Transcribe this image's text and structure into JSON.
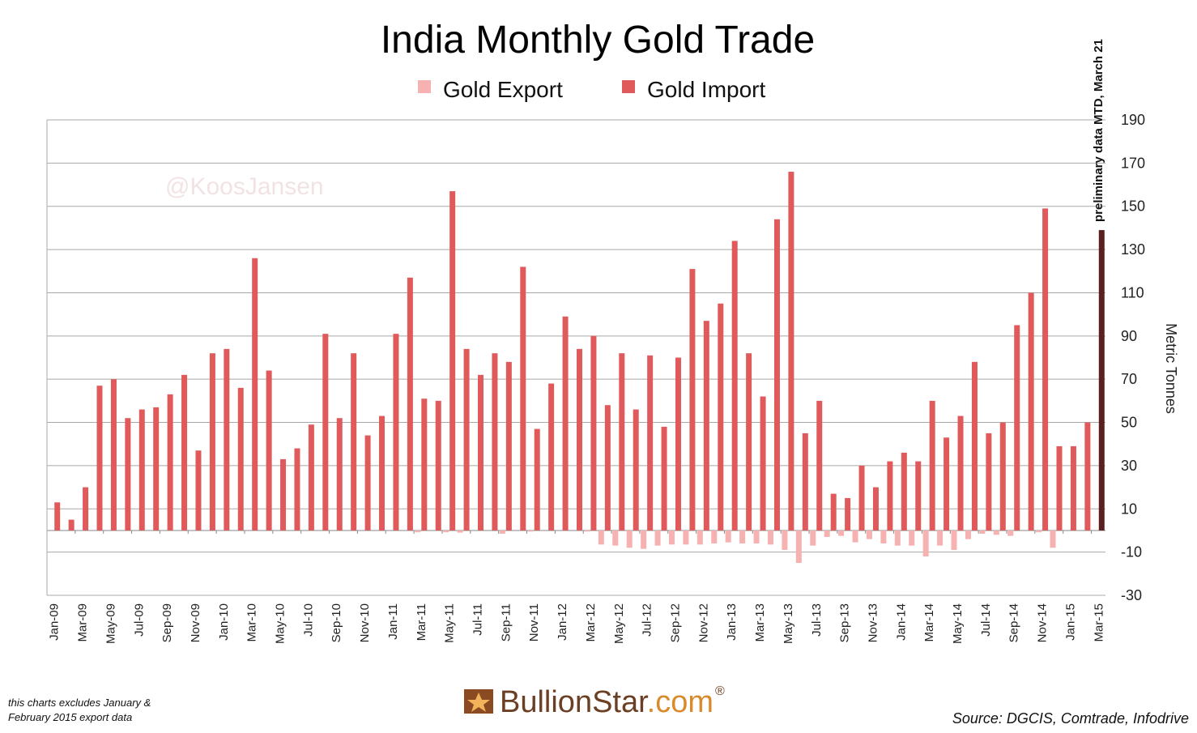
{
  "watermark": "@KoosJansen",
  "note_line1": "this charts excludes January &",
  "note_line2": "February 2015 export data",
  "brand": {
    "name": "BullionStar",
    "suffix": ".com",
    "reg": "®",
    "icon": "bullionstar-star-logo-icon"
  },
  "source": "Source: DGCIS, Comtrade, Infodrive",
  "colors": {
    "import": "#e05a5c",
    "export": "#f6b1b1",
    "preliminary": "#5a1f1f",
    "grid": "#a8a8a8"
  },
  "chart_data": {
    "type": "bar",
    "title": "India Monthly Gold Trade",
    "ylabel": "Metric Tonnes",
    "xlabel": "",
    "ylim": [
      -30,
      190
    ],
    "yticks": [
      190,
      170,
      150,
      130,
      110,
      90,
      70,
      50,
      30,
      10,
      -10,
      -30
    ],
    "y_axis_position": "right",
    "legend_position": "top-center",
    "grid": true,
    "annotation": "preliminary data MTD, March 21",
    "categories": [
      "Jan-09",
      "Feb-09",
      "Mar-09",
      "Apr-09",
      "May-09",
      "Jun-09",
      "Jul-09",
      "Aug-09",
      "Sep-09",
      "Oct-09",
      "Nov-09",
      "Dec-09",
      "Jan-10",
      "Feb-10",
      "Mar-10",
      "Apr-10",
      "May-10",
      "Jun-10",
      "Jul-10",
      "Aug-10",
      "Sep-10",
      "Oct-10",
      "Nov-10",
      "Dec-10",
      "Jan-11",
      "Feb-11",
      "Mar-11",
      "Apr-11",
      "May-11",
      "Jun-11",
      "Jul-11",
      "Aug-11",
      "Sep-11",
      "Oct-11",
      "Nov-11",
      "Dec-11",
      "Jan-12",
      "Feb-12",
      "Mar-12",
      "Apr-12",
      "May-12",
      "Jun-12",
      "Jul-12",
      "Aug-12",
      "Sep-12",
      "Oct-12",
      "Nov-12",
      "Dec-12",
      "Jan-13",
      "Feb-13",
      "Mar-13",
      "Apr-13",
      "May-13",
      "Jun-13",
      "Jul-13",
      "Aug-13",
      "Sep-13",
      "Oct-13",
      "Nov-13",
      "Dec-13",
      "Jan-14",
      "Feb-14",
      "Mar-14",
      "Apr-14",
      "May-14",
      "Jun-14",
      "Jul-14",
      "Aug-14",
      "Sep-14",
      "Oct-14",
      "Nov-14",
      "Dec-14",
      "Jan-15",
      "Feb-15",
      "Mar-15"
    ],
    "xtick_labels": [
      "Jan-09",
      "Mar-09",
      "May-09",
      "Jul-09",
      "Sep-09",
      "Nov-09",
      "Jan-10",
      "Mar-10",
      "May-10",
      "Jul-10",
      "Sep-10",
      "Nov-10",
      "Jan-11",
      "Mar-11",
      "May-11",
      "Jul-11",
      "Sep-11",
      "Nov-11",
      "Jan-12",
      "Mar-12",
      "May-12",
      "Jul-12",
      "Sep-12",
      "Nov-12",
      "Jan-13",
      "Mar-13",
      "May-13",
      "Jul-13",
      "Sep-13",
      "Nov-13",
      "Jan-14",
      "Mar-14",
      "May-14",
      "Jul-14",
      "Sep-14",
      "Nov-14",
      "Jan-15",
      "Mar-15"
    ],
    "series": [
      {
        "name": "Gold Export",
        "values": [
          0,
          0,
          0,
          0,
          0,
          0,
          0,
          0,
          0,
          0,
          0,
          0,
          0,
          0,
          0,
          0,
          0,
          0,
          0,
          0,
          0,
          0,
          0,
          0,
          0,
          0,
          -0.8,
          0,
          -0.8,
          -1,
          0,
          0,
          -1.5,
          0,
          -0.5,
          0,
          0,
          0,
          -0.5,
          -6.5,
          -7,
          -8,
          -8.5,
          -7,
          -6.5,
          -6.5,
          -6.5,
          -6,
          -5.5,
          -6,
          -6,
          -6.5,
          -9,
          -15,
          -7,
          -3,
          -2.5,
          -5.5,
          -4,
          -6,
          -7,
          -7,
          -12,
          -7,
          -9,
          -4,
          -1.5,
          -2,
          -2.5,
          0,
          -0.8,
          -8,
          0,
          0,
          0
        ]
      },
      {
        "name": "Gold Import",
        "values": [
          13,
          5,
          20,
          67,
          70,
          52,
          56,
          57,
          63,
          72,
          37,
          82,
          84,
          66,
          126,
          74,
          33,
          38,
          49,
          91,
          52,
          82,
          44,
          53,
          91,
          117,
          61,
          60,
          157,
          84,
          72,
          82,
          78,
          122,
          47,
          68,
          99,
          84,
          90,
          58,
          82,
          56,
          81,
          48,
          80,
          121,
          97,
          105,
          134,
          82,
          62,
          144,
          166,
          45,
          60,
          17,
          15,
          30,
          20,
          32,
          36,
          32,
          60,
          43,
          53,
          78,
          45,
          50,
          95,
          110,
          149,
          39,
          39,
          50,
          139
        ]
      }
    ],
    "preliminary_index": 74
  }
}
